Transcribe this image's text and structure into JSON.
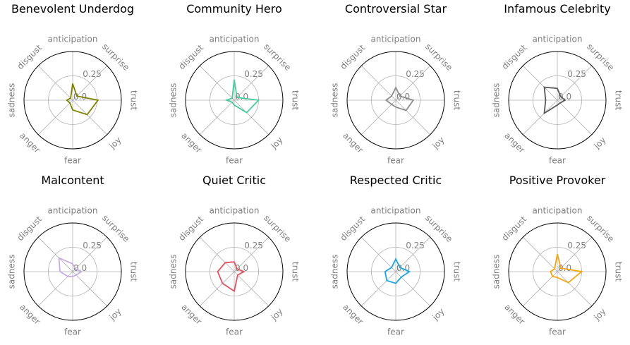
{
  "axes": [
    "anticipation",
    "surprise",
    "trust",
    "joy",
    "fear",
    "anger",
    "sadness",
    "disgust"
  ],
  "rticks": [
    "0.0",
    "0.25"
  ],
  "chart_data": [
    {
      "type": "radar",
      "title": "Benevolent Underdog",
      "color": "#808000",
      "rlim": [
        0,
        0.5
      ],
      "rgrid": [
        0.25,
        0.5
      ],
      "series": [
        {
          "values": [
            0.17,
            0.06,
            0.26,
            0.21,
            0.1,
            0.04,
            0.06,
            0.03
          ]
        }
      ]
    },
    {
      "type": "radar",
      "title": "Community Hero",
      "color": "#48c9a0",
      "rlim": [
        0,
        0.5
      ],
      "rgrid": [
        0.25,
        0.5
      ],
      "series": [
        {
          "values": [
            0.21,
            0.04,
            0.25,
            0.18,
            0.05,
            0.03,
            0.08,
            0.03
          ]
        }
      ]
    },
    {
      "type": "radar",
      "title": "Controversial Star",
      "color": "#8c8c8c",
      "rlim": [
        0,
        0.5
      ],
      "rgrid": [
        0.25,
        0.5
      ],
      "series": [
        {
          "values": [
            0.13,
            0.06,
            0.18,
            0.15,
            0.07,
            0.06,
            0.1,
            0.06
          ]
        }
      ]
    },
    {
      "type": "radar",
      "title": "Infamous Celebrity",
      "color": "#5a5a5a",
      "rlim": [
        0,
        0.5
      ],
      "rgrid": [
        0.25,
        0.5
      ],
      "series": [
        {
          "values": [
            0.12,
            0.05,
            0.08,
            0.04,
            0.05,
            0.19,
            0.12,
            0.19
          ]
        }
      ]
    },
    {
      "type": "radar",
      "title": "Malcontent",
      "color": "#c8aee0",
      "rlim": [
        0,
        0.5
      ],
      "rgrid": [
        0.25,
        0.5
      ],
      "series": [
        {
          "values": [
            0.08,
            0.04,
            0.09,
            0.05,
            0.05,
            0.07,
            0.13,
            0.2
          ]
        }
      ]
    },
    {
      "type": "radar",
      "title": "Quiet Critic",
      "color": "#e05560",
      "rlim": [
        0,
        0.5
      ],
      "rgrid": [
        0.25,
        0.5
      ],
      "series": [
        {
          "values": [
            0.1,
            0.04,
            0.1,
            0.05,
            0.2,
            0.17,
            0.17,
            0.13
          ]
        }
      ]
    },
    {
      "type": "radar",
      "title": "Respected Critic",
      "color": "#1ea3e3",
      "rlim": [
        0,
        0.5
      ],
      "rgrid": [
        0.25,
        0.5
      ],
      "series": [
        {
          "values": [
            0.13,
            0.06,
            0.14,
            0.08,
            0.12,
            0.13,
            0.11,
            0.06
          ]
        }
      ]
    },
    {
      "type": "radar",
      "title": "Positive Provoker",
      "color": "#f5a412",
      "rlim": [
        0,
        0.5
      ],
      "rgrid": [
        0.25,
        0.5
      ],
      "series": [
        {
          "values": [
            0.18,
            0.05,
            0.25,
            0.16,
            0.06,
            0.07,
            0.07,
            0.04
          ]
        }
      ]
    }
  ]
}
